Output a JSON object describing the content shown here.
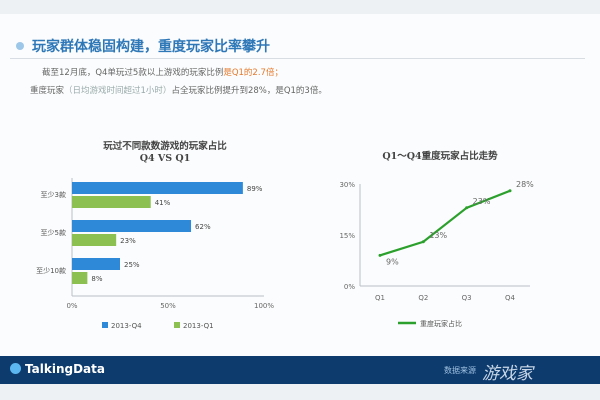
{
  "slide": {
    "title": "玩家群体稳固构建，重度玩家比率攀升",
    "desc_line1_a": "截至12月底，Q4单玩过5款以上游戏的玩家比例",
    "desc_line1_b": "是Q1的2.7倍；",
    "desc_line2_a": "重度玩家",
    "desc_line2_b": "（日均游戏时间超过1小时）",
    "desc_line2_c": "占全玩家比例提升到28%，是Q1的3倍。"
  },
  "footer": {
    "logo": "TalkingData",
    "source": "数据来源",
    "watermark": "游戏家"
  },
  "chart_data": [
    {
      "type": "bar",
      "orientation": "horizontal",
      "title": "玩过不同款数游戏的玩家占比",
      "subtitle": "Q4 VS Q1",
      "categories": [
        "至少3款",
        "至少5款",
        "至少10款"
      ],
      "series": [
        {
          "name": "2013-Q4",
          "values": [
            89,
            62,
            25
          ],
          "labels": [
            "89%",
            "62%",
            "25%"
          ],
          "color": "#2e8ad8"
        },
        {
          "name": "2013-Q1",
          "values": [
            41,
            23,
            8
          ],
          "labels": [
            "41%",
            "23%",
            "8%"
          ],
          "color": "#8cc152"
        }
      ],
      "xlim": [
        0,
        100
      ],
      "xticks": [
        "0%",
        "50%",
        "100%"
      ],
      "legend": "bottom"
    },
    {
      "type": "line",
      "title": "Q1～Q4重度玩家占比走势",
      "categories": [
        "Q1",
        "Q2",
        "Q3",
        "Q4"
      ],
      "series": [
        {
          "name": "重度玩家占比",
          "values": [
            9,
            13,
            23,
            28
          ],
          "labels": [
            "9%",
            "13%",
            "23%",
            "28%"
          ],
          "color": "#2ca02c"
        }
      ],
      "ylim": [
        0,
        30
      ],
      "yticks": [
        "0%",
        "15%",
        "30%"
      ],
      "legend": "bottom"
    }
  ]
}
